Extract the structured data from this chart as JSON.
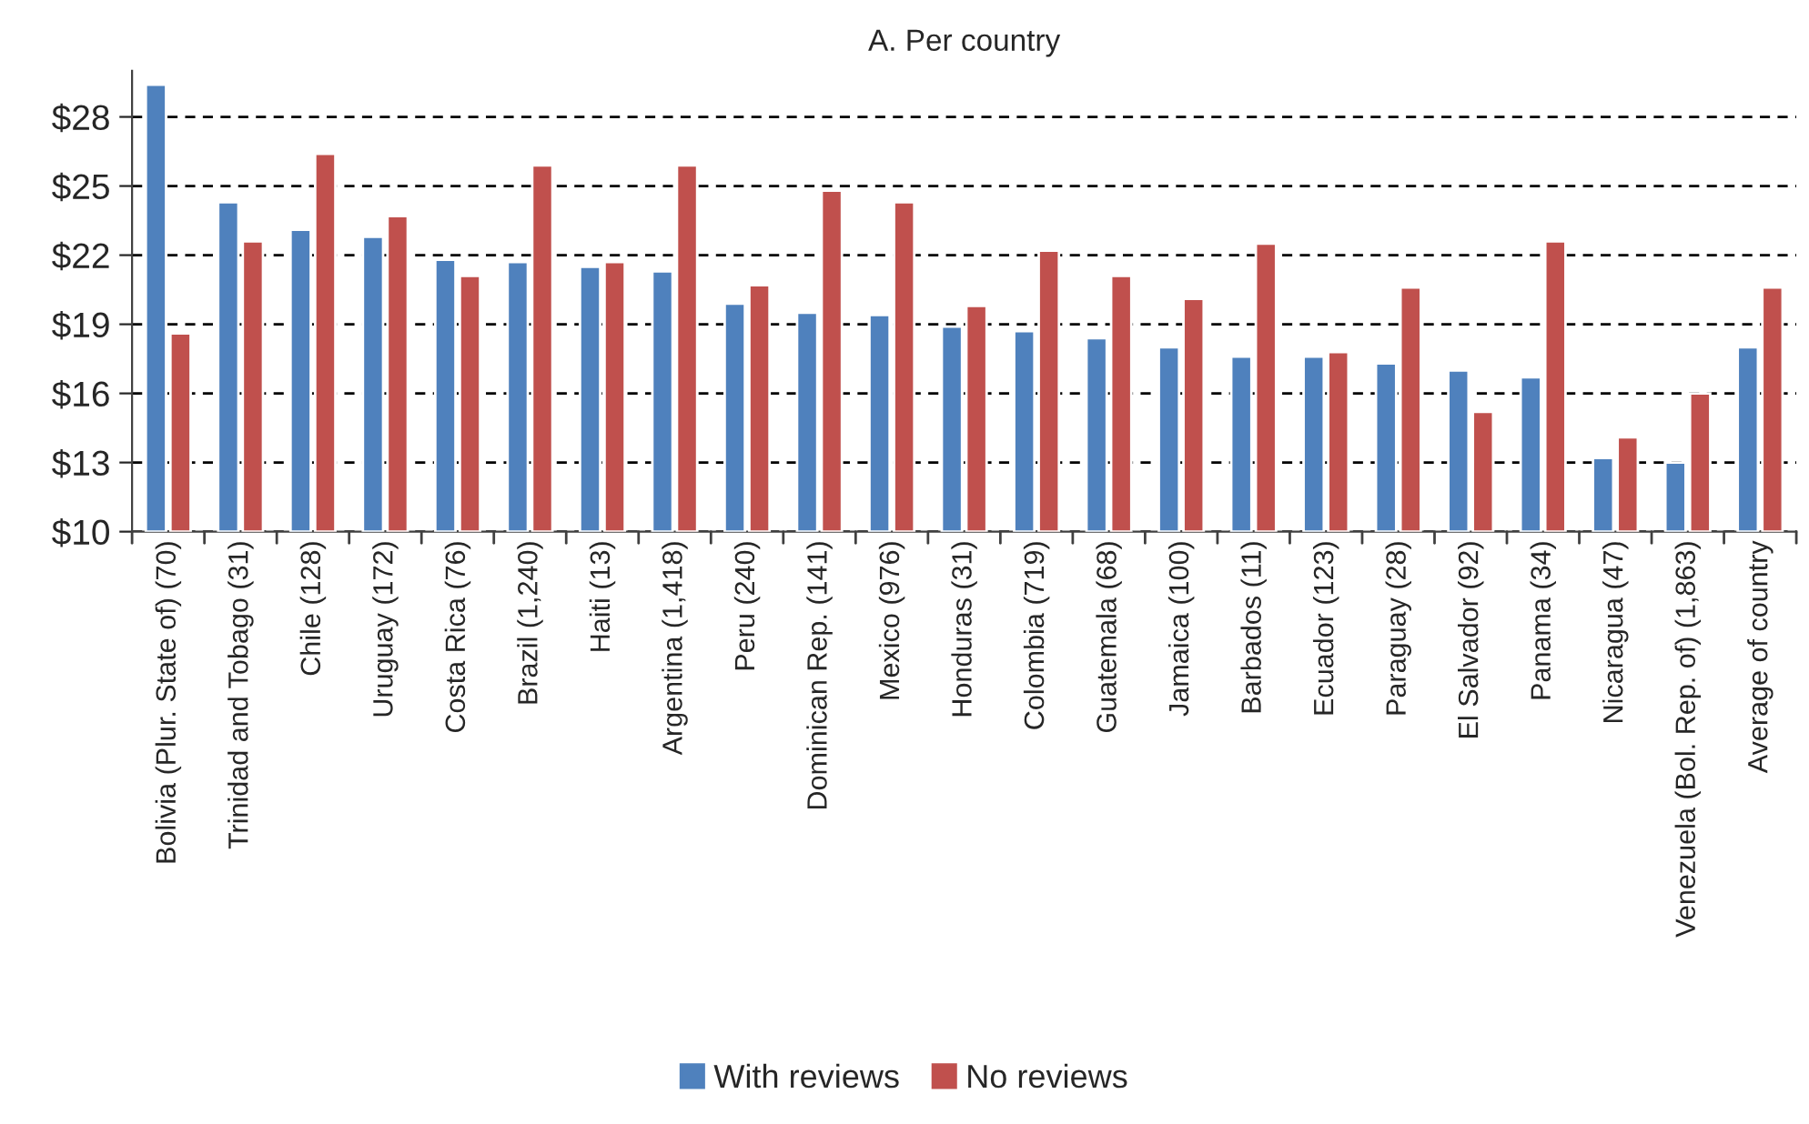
{
  "chart_data": {
    "type": "bar",
    "title": "A. Per country",
    "categories": [
      "Bolivia (Plur. State of) (70)",
      "Trinidad and Tobago (31)",
      "Chile (128)",
      "Uruguay (172)",
      "Costa Rica (76)",
      "Brazil (1,240)",
      "Haiti (13)",
      "Argentina (1,418)",
      "Peru (240)",
      "Dominican Rep. (141)",
      "Mexico (976)",
      "Honduras (31)",
      "Colombia (719)",
      "Guatemala (68)",
      "Jamaica (100)",
      "Barbados (11)",
      "Ecuador (123)",
      "Paraguay (28)",
      "El Salvador (92)",
      "Panama (34)",
      "Nicaragua (47)",
      "Venezuela (Bol. Rep. of) (1,863)",
      "Average of country"
    ],
    "series": [
      {
        "name": "With reviews",
        "color": "#4f81bd",
        "values": [
          29.4,
          24.3,
          23.1,
          22.8,
          21.8,
          21.7,
          21.5,
          21.3,
          19.9,
          19.5,
          19.4,
          18.9,
          18.7,
          18.4,
          18.0,
          17.6,
          17.6,
          17.3,
          17.0,
          16.7,
          13.2,
          13.0,
          18.0
        ]
      },
      {
        "name": "No reviews",
        "color": "#c0504d",
        "values": [
          18.6,
          22.6,
          26.4,
          23.7,
          21.1,
          25.9,
          21.7,
          25.9,
          20.7,
          24.8,
          24.3,
          19.8,
          22.2,
          21.1,
          20.1,
          22.5,
          17.8,
          20.6,
          15.2,
          22.6,
          14.1,
          16.0,
          20.6
        ]
      }
    ],
    "ylim": [
      10,
      30
    ],
    "yticks": [
      {
        "value": 10,
        "label": "$10"
      },
      {
        "value": 13,
        "label": "$13"
      },
      {
        "value": 16,
        "label": "$16"
      },
      {
        "value": 19,
        "label": "$19"
      },
      {
        "value": 22,
        "label": "$22"
      },
      {
        "value": 25,
        "label": "$25"
      },
      {
        "value": 28,
        "label": "$28"
      }
    ],
    "grid": "y",
    "line_style": "dashed",
    "legend": "bottom"
  }
}
